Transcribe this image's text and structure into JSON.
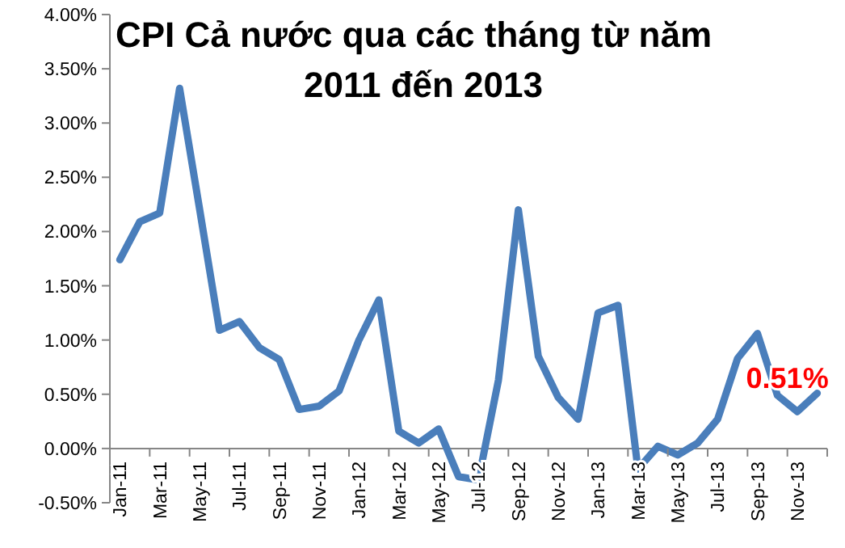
{
  "chart_data": {
    "type": "line",
    "title": "CPI Cả nước qua các tháng từ năm\n2011 đến 2013",
    "categories": [
      "Jan-11",
      null,
      "Mar-11",
      null,
      "May-11",
      null,
      "Jul-11",
      null,
      "Sep-11",
      null,
      "Nov-11",
      null,
      "Jan-12",
      null,
      "Mar-12",
      null,
      "May-12",
      null,
      "Jul-12",
      null,
      "Sep-12",
      null,
      "Nov-12",
      null,
      "Jan-13",
      null,
      "Mar-13",
      null,
      "May-13",
      null,
      "Jul-13",
      null,
      "Sep-13",
      null,
      "Nov-13",
      null
    ],
    "series": [
      {
        "color": "#4a7ebb",
        "values": [
          1.74,
          2.09,
          2.17,
          3.32,
          2.21,
          1.09,
          1.17,
          0.93,
          0.82,
          0.36,
          0.39,
          0.53,
          1.0,
          1.37,
          0.16,
          0.05,
          0.18,
          -0.26,
          -0.29,
          0.63,
          2.2,
          0.85,
          0.47,
          0.27,
          1.25,
          1.32,
          -0.19,
          0.02,
          -0.06,
          0.05,
          0.27,
          0.83,
          1.06,
          0.49,
          0.34,
          0.51
        ],
        "value_labels": [
          null,
          null,
          null,
          null,
          null,
          null,
          null,
          null,
          null,
          null,
          null,
          null,
          null,
          null,
          null,
          null,
          null,
          null,
          null,
          null,
          null,
          null,
          null,
          null,
          null,
          null,
          null,
          null,
          null,
          null,
          null,
          null,
          null,
          null,
          null,
          "0.51%"
        ]
      }
    ],
    "ylim": [
      -0.5,
      4
    ],
    "yticks": [
      {
        "value": -0.5,
        "label": "-0.50%"
      },
      {
        "value": 0,
        "label": "0.00%"
      },
      {
        "value": 0.5,
        "label": "0.50%"
      },
      {
        "value": 1,
        "label": "1.00%"
      },
      {
        "value": 1.5,
        "label": "1.50%"
      },
      {
        "value": 2,
        "label": "2.00%"
      },
      {
        "value": 2.5,
        "label": "2.50%"
      },
      {
        "value": 3,
        "label": "3.00%"
      },
      {
        "value": 3.5,
        "label": "3.50%"
      },
      {
        "value": 4,
        "label": "4.00%"
      }
    ],
    "marker": "none",
    "line_style": "solid"
  }
}
